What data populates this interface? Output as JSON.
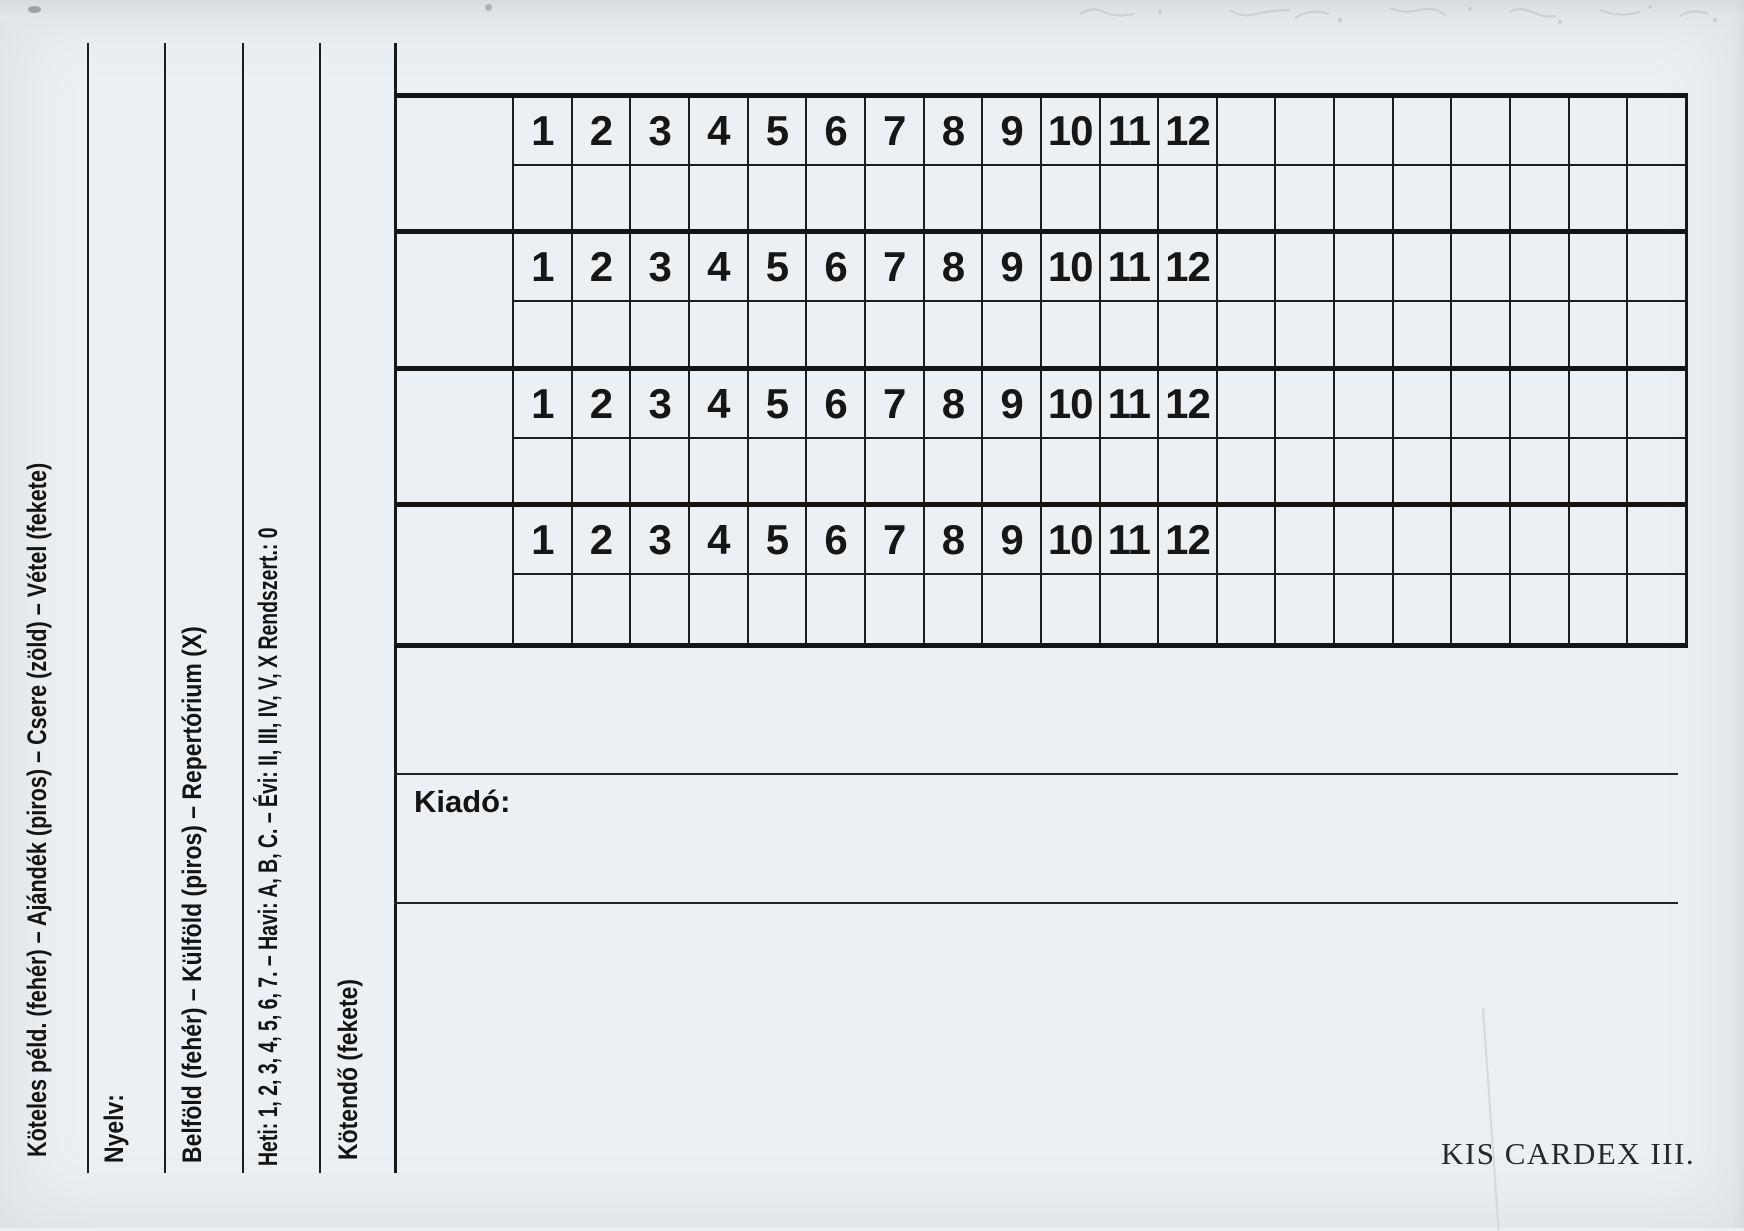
{
  "card": {
    "rotated_labels": [
      {
        "text": "Köteles péld. (fehér) – Ajándék (piros) – Csere (zöld) – Vétel (fekete)"
      },
      {
        "text": "Nyelv:"
      },
      {
        "text": "Belföld (fehér) – Külföld (piros) – Repertórium (X)"
      },
      {
        "text": "Heti: 1, 2, 3, 4, 5, 6, 7. – Havi: A, B, C. – Évi: II, III, IV, V, X Rendszert.: 0"
      },
      {
        "text": "Kötendő (fekete)"
      }
    ],
    "grid": {
      "group_count": 4,
      "month_numbers": [
        "1",
        "2",
        "3",
        "4",
        "5",
        "6",
        "7",
        "8",
        "9",
        "10",
        "11",
        "12"
      ],
      "empty_column_count": 8
    },
    "publisher_label": "Kiadó:",
    "footer_text": "KIS CARDEX III.",
    "colors": {
      "paper": "#edf0f2",
      "ink": "#141414",
      "line": "#1d1d1d"
    }
  }
}
